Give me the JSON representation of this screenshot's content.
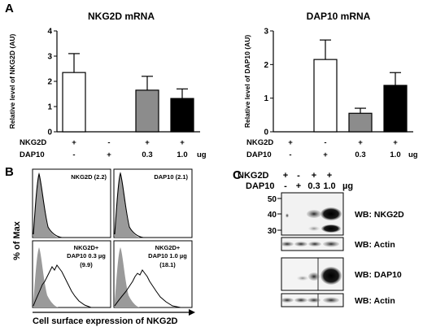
{
  "panels": {
    "a": "A",
    "b": "B",
    "c": "C"
  },
  "panel_a": {
    "row_labels": [
      "NKG2D",
      "DAP10"
    ],
    "row_values": {
      "nkg2d": [
        "+",
        "-",
        "+",
        "+"
      ],
      "dap10": [
        "-",
        "+",
        "0.3",
        "1.0"
      ]
    },
    "unit": "ug"
  },
  "chart_data": [
    {
      "type": "bar",
      "title": "NKG2D mRNA",
      "ylabel": "Relative level of NKG2D (AU)",
      "ylim": [
        0,
        4
      ],
      "yticks": [
        0,
        1,
        2,
        3,
        4
      ],
      "categories": [
        "NKG2D + / DAP10 -",
        "NKG2D - / DAP10 +",
        "NKG2D + / DAP10 0.3",
        "NKG2D + / DAP10 1.0 ug"
      ],
      "values": [
        2.35,
        0,
        1.65,
        1.32
      ],
      "errors": [
        0.75,
        0,
        0.55,
        0.38
      ],
      "colors": [
        "#ffffff",
        "#ffffff",
        "#8c8c8c",
        "#000000"
      ]
    },
    {
      "type": "bar",
      "title": "DAP10 mRNA",
      "ylabel": "Relative level of DAP10 (AU)",
      "ylim": [
        0,
        3
      ],
      "yticks": [
        0,
        1,
        2,
        3
      ],
      "categories": [
        "NKG2D + / DAP10 -",
        "NKG2D - / DAP10 +",
        "NKG2D + / DAP10 0.3",
        "NKG2D + / DAP10 1.0 ug"
      ],
      "values": [
        0,
        2.15,
        0.55,
        1.38
      ],
      "errors": [
        0,
        0.58,
        0.15,
        0.38
      ],
      "colors": [
        "#ffffff",
        "#ffffff",
        "#8c8c8c",
        "#000000"
      ]
    }
  ],
  "panel_b": {
    "ylabel": "% of Max",
    "xlabel": "Cell surface expression of NKG2D",
    "plots": [
      {
        "label1": "NKG2D (2.2)",
        "label2": "",
        "label3": ""
      },
      {
        "label1": "DAP10 (2.1)",
        "label2": "",
        "label3": ""
      },
      {
        "label1": "NKG2D+",
        "label2": "DAP10 0.3 µg",
        "label3": "(9.9)"
      },
      {
        "label1": "NKG2D+",
        "label2": "DAP10 1.0 µg",
        "label3": "(18.1)"
      }
    ]
  },
  "panel_c": {
    "header_labels": [
      "NKG2D",
      "DAP10"
    ],
    "nkg2d_signs": [
      "+",
      "-",
      "+",
      "+"
    ],
    "dap10_signs": [
      "-",
      "+",
      "0.3",
      "1.0"
    ],
    "unit": "µg",
    "markers": [
      "50",
      "40",
      "30"
    ],
    "blots": [
      "WB: NKG2D",
      "WB: Actin",
      "WB: DAP10",
      "WB: Actin"
    ]
  }
}
